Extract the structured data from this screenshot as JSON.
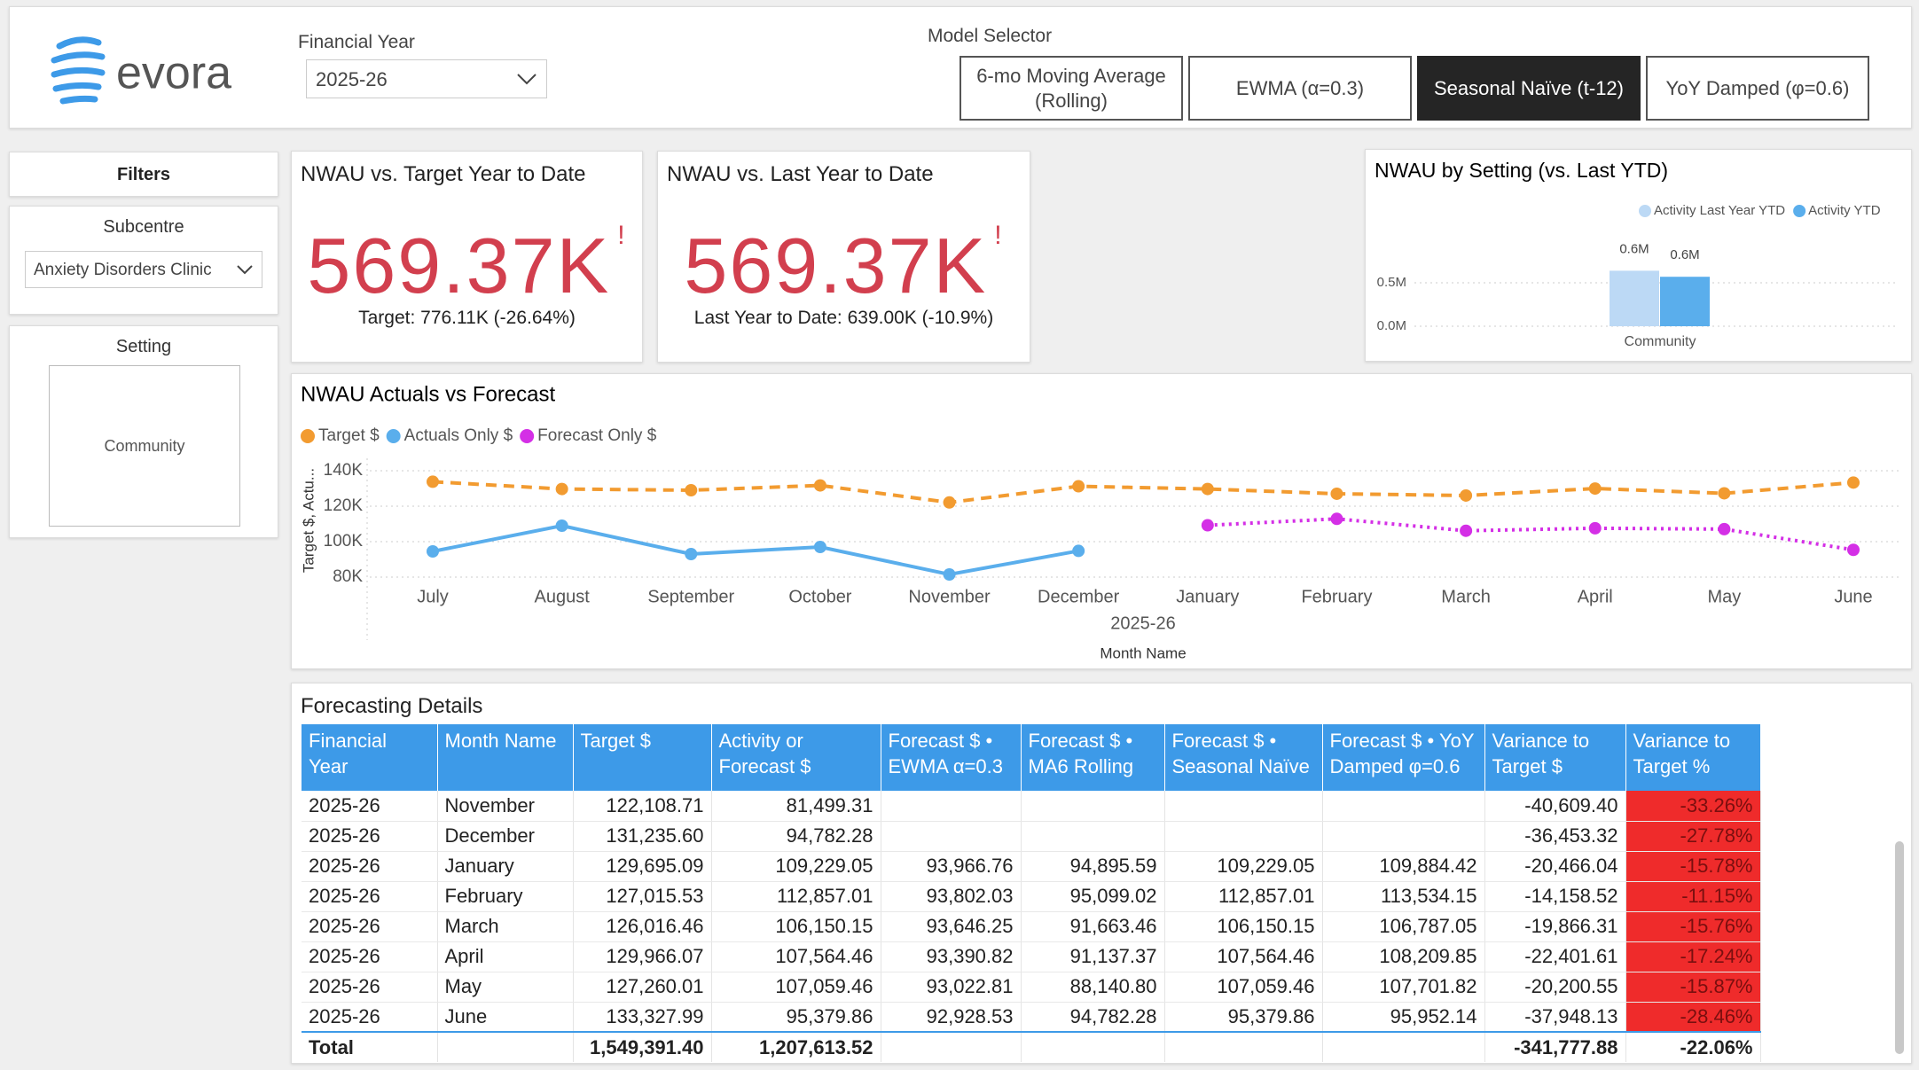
{
  "header": {
    "logo": "evora",
    "year_label": "Financial Year",
    "year_value": "2025-26",
    "model_label": "Model Selector",
    "models": [
      "6-mo Moving Average (Rolling)",
      "EWMA (α=0.3)",
      "Seasonal Naïve (t-12)",
      "YoY Damped (φ=0.6)"
    ],
    "selected_model": 2
  },
  "filters": {
    "title": "Filters",
    "subcentre_label": "Subcentre",
    "subcentre_value": "Anxiety Disorders Clinic",
    "setting_label": "Setting",
    "setting_value": "Community"
  },
  "cards": [
    {
      "title": "NWAU vs. Target Year to Date",
      "value": "569.37K",
      "note": "Target: 776.11K (-26.64%)"
    },
    {
      "title": "NWAU vs. Last Year to Date",
      "value": "569.37K",
      "note": "Last Year to Date: 639.00K (-10.9%)"
    }
  ],
  "chart_data": [
    {
      "type": "line",
      "title": "NWAU Actuals vs Forecast",
      "y_label": "Target $, Actu...",
      "x_label": "Month Name",
      "x_group_label": "2025-26",
      "categories": [
        "July",
        "August",
        "September",
        "October",
        "November",
        "December",
        "January",
        "February",
        "March",
        "April",
        "May",
        "June"
      ],
      "series": [
        {
          "name": "Target $",
          "color": "#f29b30",
          "style": "dashed",
          "values": [
            133800,
            129700,
            129000,
            131700,
            122108.71,
            131235.6,
            129695.09,
            127015.53,
            126016.46,
            129966.07,
            127260.01,
            133327.99
          ]
        },
        {
          "name": "Actuals Only $",
          "color": "#5aaeec",
          "style": "solid",
          "values": [
            94500,
            109000,
            93000,
            97000,
            81499.31,
            94782.28,
            null,
            null,
            null,
            null,
            null,
            null
          ]
        },
        {
          "name": "Forecast Only $",
          "color": "#d42fe6",
          "style": "dotted",
          "values": [
            null,
            null,
            null,
            null,
            null,
            null,
            109229.05,
            112857.01,
            106150.15,
            107564.46,
            107059.46,
            95379.86
          ]
        }
      ],
      "ylim": [
        80000,
        140000
      ],
      "yticks": [
        {
          "value": 80000,
          "label": "80K"
        },
        {
          "value": 100000,
          "label": "100K"
        },
        {
          "value": 120000,
          "label": "120K"
        },
        {
          "value": 140000,
          "label": "140K"
        }
      ],
      "grid": true
    },
    {
      "type": "bar",
      "title": "NWAU by Setting (vs. Last YTD)",
      "categories": [
        "Community"
      ],
      "series": [
        {
          "name": "Activity Last Year YTD",
          "color": "#bcd9f5",
          "values": [
            639000
          ],
          "value_labels": [
            "0.6M"
          ]
        },
        {
          "name": "Activity YTD",
          "color": "#5aaeec",
          "values": [
            569370
          ],
          "value_labels": [
            "0.6M"
          ]
        }
      ],
      "ylim": [
        0,
        1000000
      ],
      "yticks": [
        {
          "value": 0,
          "label": "0.0M"
        },
        {
          "value": 500000,
          "label": "0.5M"
        }
      ],
      "grid": true
    }
  ],
  "table": {
    "title": "Forecasting Details",
    "columns": [
      "Financial Year",
      "Month Name",
      "Target $",
      "Activity or Forecast $",
      "Forecast $ • EWMA α=0.3",
      "Forecast $ • MA6 Rolling",
      "Forecast $ • Seasonal Naïve",
      "Forecast $ • YoY Damped φ=0.6",
      "Variance to Target $",
      "Variance to Target %"
    ],
    "rows": [
      [
        "2025-26",
        "November",
        "122,108.71",
        "81,499.31",
        null,
        null,
        null,
        null,
        "-40,609.40",
        "-33.26%"
      ],
      [
        "2025-26",
        "December",
        "131,235.60",
        "94,782.28",
        null,
        null,
        null,
        null,
        "-36,453.32",
        "-27.78%"
      ],
      [
        "2025-26",
        "January",
        "129,695.09",
        "109,229.05",
        "93,966.76",
        "94,895.59",
        "109,229.05",
        "109,884.42",
        "-20,466.04",
        "-15.78%"
      ],
      [
        "2025-26",
        "February",
        "127,015.53",
        "112,857.01",
        "93,802.03",
        "95,099.02",
        "112,857.01",
        "113,534.15",
        "-14,158.52",
        "-11.15%"
      ],
      [
        "2025-26",
        "March",
        "126,016.46",
        "106,150.15",
        "93,646.25",
        "91,663.46",
        "106,150.15",
        "106,787.05",
        "-19,866.31",
        "-15.76%"
      ],
      [
        "2025-26",
        "April",
        "129,966.07",
        "107,564.46",
        "93,390.82",
        "91,137.37",
        "107,564.46",
        "108,209.85",
        "-22,401.61",
        "-17.24%"
      ],
      [
        "2025-26",
        "May",
        "127,260.01",
        "107,059.46",
        "93,022.81",
        "88,140.80",
        "107,059.46",
        "107,701.82",
        "-20,200.55",
        "-15.87%"
      ],
      [
        "2025-26",
        "June",
        "133,327.99",
        "95,379.86",
        "92,928.53",
        "94,782.28",
        "95,379.86",
        "95,952.14",
        "-37,948.13",
        "-28.46%"
      ]
    ],
    "total": [
      "Total",
      null,
      "1,549,391.40",
      "1,207,613.52",
      null,
      null,
      null,
      null,
      "-341,777.88",
      "-22.06%"
    ]
  }
}
